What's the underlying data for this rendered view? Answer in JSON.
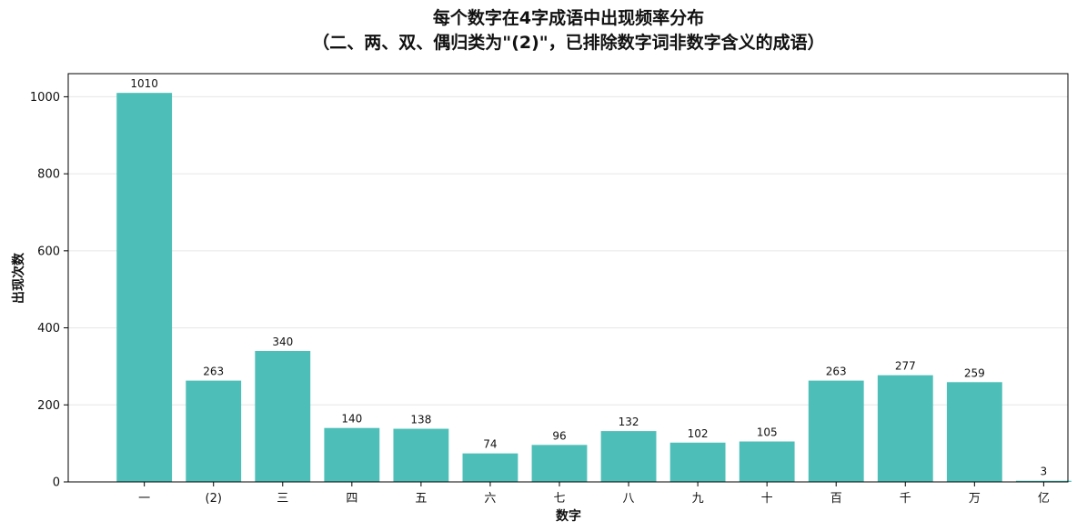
{
  "chart_data": {
    "type": "bar",
    "title": "每个数字在4字成语中出现频率分布",
    "subtitle": "（二、两、双、偶归类为\"(2)\"，已排除数字词非数字含义的成语）",
    "xlabel": "数字",
    "ylabel": "出现次数",
    "categories": [
      "一",
      "(2)",
      "三",
      "四",
      "五",
      "六",
      "七",
      "八",
      "九",
      "十",
      "百",
      "千",
      "万",
      "亿"
    ],
    "values": [
      1010,
      263,
      340,
      140,
      138,
      74,
      96,
      132,
      102,
      105,
      263,
      277,
      259,
      3
    ],
    "ylim": [
      0,
      1060
    ],
    "yticks": [
      0,
      200,
      400,
      600,
      800,
      1000
    ],
    "grid": "y",
    "bar_color": "#4DBFB8",
    "grid_color": "#E6E6E6"
  }
}
